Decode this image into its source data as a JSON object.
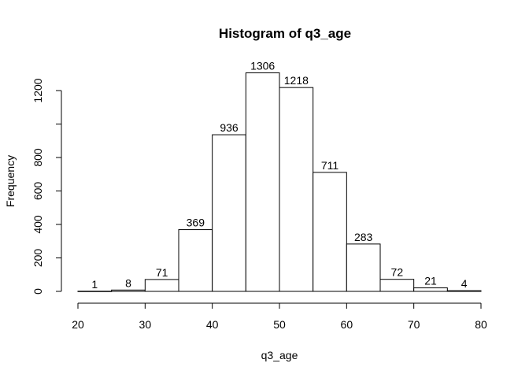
{
  "chart_data": {
    "type": "bar",
    "title": "Histogram of q3_age",
    "xlabel": "q3_age",
    "ylabel": "Frequency",
    "bins": [
      {
        "x0": 20,
        "x1": 25,
        "value": 1
      },
      {
        "x0": 25,
        "x1": 30,
        "value": 8
      },
      {
        "x0": 30,
        "x1": 35,
        "value": 71
      },
      {
        "x0": 35,
        "x1": 40,
        "value": 369
      },
      {
        "x0": 40,
        "x1": 45,
        "value": 936
      },
      {
        "x0": 45,
        "x1": 50,
        "value": 1306
      },
      {
        "x0": 50,
        "x1": 55,
        "value": 1218
      },
      {
        "x0": 55,
        "x1": 60,
        "value": 711
      },
      {
        "x0": 60,
        "x1": 65,
        "value": 283
      },
      {
        "x0": 65,
        "x1": 70,
        "value": 72
      },
      {
        "x0": 70,
        "x1": 75,
        "value": 21
      },
      {
        "x0": 75,
        "x1": 80,
        "value": 4
      }
    ],
    "xlim": [
      20,
      80
    ],
    "ylim": [
      0,
      1306
    ],
    "x_ticks": [
      20,
      30,
      40,
      50,
      60,
      70,
      80
    ],
    "y_ticks": [
      0,
      200,
      400,
      600,
      800,
      1000,
      1200
    ],
    "y_tick_labels": [
      "0",
      "200",
      "400",
      "600",
      "800",
      "",
      "1200"
    ],
    "grid": false,
    "bar_fill": "#ffffff",
    "bar_stroke": "#000000"
  }
}
